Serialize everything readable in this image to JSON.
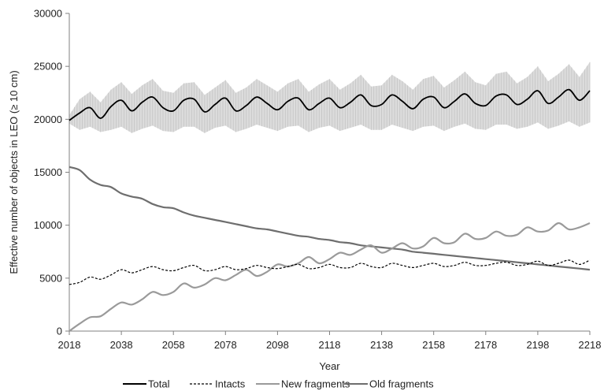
{
  "chart_data": {
    "type": "line",
    "title": "",
    "xlabel": "Year",
    "ylabel": "Effective number of objects in LEO (≥ 10 cm)",
    "xlim": [
      2018,
      2218
    ],
    "ylim": [
      0,
      30000
    ],
    "x_ticks": [
      "2018",
      "2038",
      "2058",
      "2078",
      "2098",
      "2118",
      "2138",
      "2158",
      "2178",
      "2198",
      "2218"
    ],
    "y_ticks": [
      "0",
      "5000",
      "10000",
      "15000",
      "20000",
      "25000",
      "30000"
    ],
    "grid": "off",
    "legend_position": "bottom",
    "x": [
      2018,
      2022,
      2026,
      2030,
      2034,
      2038,
      2042,
      2046,
      2050,
      2054,
      2058,
      2062,
      2066,
      2070,
      2074,
      2078,
      2082,
      2086,
      2090,
      2094,
      2098,
      2102,
      2106,
      2110,
      2114,
      2118,
      2122,
      2126,
      2130,
      2134,
      2138,
      2142,
      2146,
      2150,
      2154,
      2158,
      2162,
      2166,
      2170,
      2174,
      2178,
      2182,
      2186,
      2190,
      2194,
      2198,
      2202,
      2206,
      2210,
      2214,
      2218
    ],
    "series": [
      {
        "name": "Total",
        "color": "#000000",
        "dash": "solid",
        "values": [
          19900,
          20600,
          21100,
          20100,
          21200,
          21800,
          20800,
          21600,
          22100,
          21100,
          20800,
          21800,
          21900,
          20700,
          21400,
          22000,
          20800,
          21300,
          22100,
          21500,
          20900,
          21700,
          22000,
          20900,
          21500,
          22000,
          21100,
          21600,
          22300,
          21300,
          21400,
          22300,
          21700,
          21000,
          21900,
          22100,
          21100,
          21700,
          22400,
          21500,
          21300,
          22200,
          22300,
          21400,
          21900,
          22700,
          21500,
          22100,
          22800,
          21800,
          22700
        ],
        "band": {
          "color": "#d6d6d6",
          "lower": [
            19600,
            19000,
            19300,
            18800,
            19000,
            19300,
            18700,
            19100,
            19400,
            18900,
            18800,
            19300,
            19300,
            18700,
            19200,
            19400,
            18800,
            19100,
            19500,
            19200,
            18900,
            19300,
            19400,
            18800,
            19200,
            19400,
            18900,
            19200,
            19500,
            19000,
            19000,
            19500,
            19200,
            18900,
            19300,
            19400,
            18900,
            19300,
            19600,
            19100,
            19000,
            19500,
            19500,
            19100,
            19300,
            19700,
            19100,
            19400,
            19800,
            19300,
            19700
          ],
          "upper": [
            20400,
            21900,
            22600,
            21600,
            22800,
            23500,
            22400,
            23200,
            23800,
            22700,
            22500,
            23400,
            23500,
            22300,
            23000,
            23700,
            22500,
            23000,
            23800,
            23200,
            22600,
            23400,
            23800,
            22600,
            23300,
            23800,
            22800,
            23400,
            24200,
            23100,
            23200,
            24200,
            23600,
            22800,
            23800,
            24100,
            23000,
            23700,
            24500,
            23500,
            23200,
            24300,
            24500,
            23400,
            24000,
            25000,
            23600,
            24300,
            25200,
            24000,
            25400
          ]
        }
      },
      {
        "name": "Intacts",
        "color": "#000000",
        "dash": "dashed",
        "values": [
          4400,
          4600,
          5100,
          4900,
          5300,
          5800,
          5500,
          5800,
          6100,
          5800,
          5700,
          6000,
          6200,
          5700,
          5800,
          6100,
          5800,
          5900,
          6200,
          6000,
          5900,
          6100,
          6300,
          5900,
          6000,
          6300,
          6000,
          6000,
          6400,
          6100,
          6000,
          6400,
          6200,
          6000,
          6200,
          6400,
          6100,
          6200,
          6500,
          6200,
          6200,
          6400,
          6500,
          6200,
          6300,
          6600,
          6200,
          6400,
          6700,
          6300,
          6700
        ]
      },
      {
        "name": "New fragments",
        "color": "#9a9a9a",
        "dash": "solid",
        "values": [
          0,
          700,
          1300,
          1400,
          2100,
          2700,
          2500,
          3000,
          3700,
          3400,
          3700,
          4500,
          4100,
          4400,
          5000,
          4800,
          5300,
          5800,
          5200,
          5600,
          6300,
          6100,
          6400,
          7000,
          6400,
          6800,
          7400,
          7200,
          7700,
          8100,
          7400,
          7800,
          8300,
          7800,
          8000,
          8800,
          8300,
          8400,
          9200,
          8700,
          8800,
          9400,
          9000,
          9100,
          9800,
          9400,
          9500,
          10200,
          9600,
          9800,
          10200
        ]
      },
      {
        "name": "Old fragments",
        "color": "#6e6e6e",
        "dash": "solid",
        "values": [
          15500,
          15200,
          14300,
          13800,
          13600,
          13000,
          12700,
          12500,
          12000,
          11700,
          11600,
          11200,
          10900,
          10700,
          10500,
          10300,
          10100,
          9900,
          9700,
          9600,
          9400,
          9200,
          9000,
          8900,
          8700,
          8600,
          8400,
          8300,
          8100,
          8000,
          7900,
          7800,
          7700,
          7500,
          7400,
          7300,
          7200,
          7100,
          7000,
          6900,
          6800,
          6700,
          6600,
          6500,
          6400,
          6300,
          6200,
          6100,
          6000,
          5900,
          5800
        ]
      }
    ]
  }
}
